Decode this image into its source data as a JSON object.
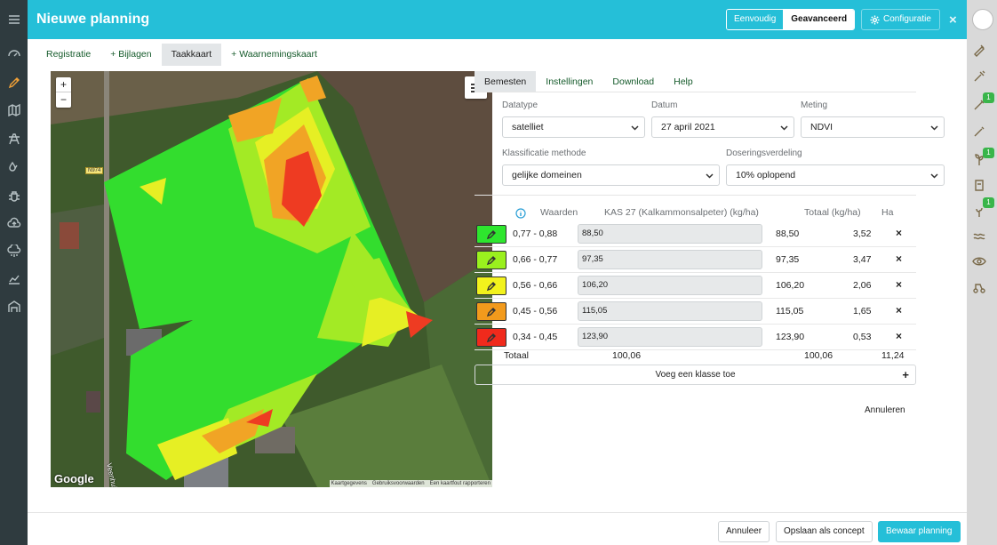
{
  "app": {
    "title": "Nieuwe planning"
  },
  "header": {
    "mode_simple": "Eenvoudig",
    "mode_advanced": "Geavanceerd",
    "config_label": "Configuratie",
    "close_symbol": "×"
  },
  "tabs": [
    "Registratie",
    "+ Bijlagen",
    "Taakkaart",
    "+ Waarnemingskaart"
  ],
  "map": {
    "zoom_in": "+",
    "zoom_out": "−",
    "road_label": "N974",
    "street_label": "Veenhuizen",
    "google": "Google",
    "attribution": [
      "Kaartgegevens",
      "Gebruiksvoorwaarden",
      "Een kaartfout rapporteren"
    ]
  },
  "panel_tabs": [
    "Bemesten",
    "Instellingen",
    "Download",
    "Help"
  ],
  "form": {
    "datatype_label": "Datatype",
    "datatype_value": "satelliet",
    "datum_label": "Datum",
    "datum_value": "27 april 2021",
    "meting_label": "Meting",
    "meting_value": "NDVI",
    "klass_label": "Klassificatie methode",
    "klass_value": "gelijke domeinen",
    "dosering_label": "Doseringsverdeling",
    "dosering_value": "10% oplopend"
  },
  "table": {
    "col_values": "Waarden",
    "col_product": "KAS 27 (Kalkammonsalpeter) (kg/ha)",
    "col_total": "Totaal (kg/ha)",
    "col_ha": "Ha",
    "rows": [
      {
        "color": "#2ee62e",
        "range": "0,77 - 0,88",
        "input": "88,50",
        "total": "88,50",
        "ha": "3,52",
        "remove": "×"
      },
      {
        "color": "#9af01e",
        "range": "0,66 - 0,77",
        "input": "97,35",
        "total": "97,35",
        "ha": "3,47",
        "remove": "×"
      },
      {
        "color": "#f2f21c",
        "range": "0,56 - 0,66",
        "input": "106,20",
        "total": "106,20",
        "ha": "2,06",
        "remove": "×"
      },
      {
        "color": "#f29a1c",
        "range": "0,45 - 0,56",
        "input": "115,05",
        "total": "115,05",
        "ha": "1,65",
        "remove": "×"
      },
      {
        "color": "#f02a1c",
        "range": "0,34 - 0,45",
        "input": "123,90",
        "total": "123,90",
        "ha": "0,53",
        "remove": "×"
      }
    ],
    "total_label": "Totaal",
    "total_input": "100,06",
    "total_total": "100,06",
    "total_ha": "11,24",
    "add_class": "Voeg een klasse toe",
    "add_symbol": "+"
  },
  "annuleren": "Annuleren",
  "footer": {
    "cancel": "Annuleer",
    "save_draft": "Opslaan als concept",
    "save": "Bewaar planning"
  }
}
